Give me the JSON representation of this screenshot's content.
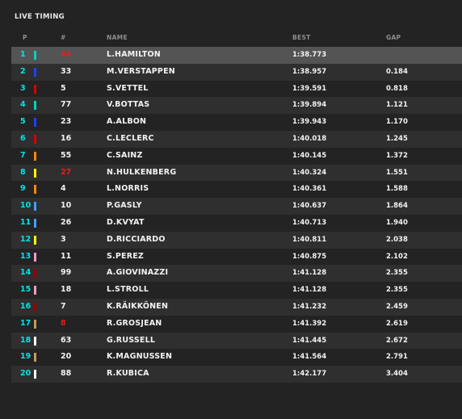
{
  "title": "LIVE TIMING",
  "headers": {
    "pos": "P",
    "num": "#",
    "name": "NAME",
    "best": "BEST",
    "gap": "GAP"
  },
  "rows": [
    {
      "pos": "1",
      "team_color": "#00d2be",
      "num": "44",
      "num_red": true,
      "name": "L.HAMILTON",
      "best": "1:38.773",
      "gap": ""
    },
    {
      "pos": "2",
      "team_color": "#1e41ff",
      "num": "33",
      "num_red": false,
      "name": "M.VERSTAPPEN",
      "best": "1:38.957",
      "gap": "0.184"
    },
    {
      "pos": "3",
      "team_color": "#dc0000",
      "num": "5",
      "num_red": false,
      "name": "S.VETTEL",
      "best": "1:39.591",
      "gap": "0.818"
    },
    {
      "pos": "4",
      "team_color": "#00d2be",
      "num": "77",
      "num_red": false,
      "name": "V.BOTTAS",
      "best": "1:39.894",
      "gap": "1.121"
    },
    {
      "pos": "5",
      "team_color": "#1e41ff",
      "num": "23",
      "num_red": false,
      "name": "A.ALBON",
      "best": "1:39.943",
      "gap": "1.170"
    },
    {
      "pos": "6",
      "team_color": "#dc0000",
      "num": "16",
      "num_red": false,
      "name": "C.LECLERC",
      "best": "1:40.018",
      "gap": "1.245"
    },
    {
      "pos": "7",
      "team_color": "#ff8700",
      "num": "55",
      "num_red": false,
      "name": "C.SAINZ",
      "best": "1:40.145",
      "gap": "1.372"
    },
    {
      "pos": "8",
      "team_color": "#fff500",
      "num": "27",
      "num_red": true,
      "name": "N.HULKENBERG",
      "best": "1:40.324",
      "gap": "1.551"
    },
    {
      "pos": "9",
      "team_color": "#ff8700",
      "num": "4",
      "num_red": false,
      "name": "L.NORRIS",
      "best": "1:40.361",
      "gap": "1.588"
    },
    {
      "pos": "10",
      "team_color": "#469bff",
      "num": "10",
      "num_red": false,
      "name": "P.GASLY",
      "best": "1:40.637",
      "gap": "1.864"
    },
    {
      "pos": "11",
      "team_color": "#469bff",
      "num": "26",
      "num_red": false,
      "name": "D.KVYAT",
      "best": "1:40.713",
      "gap": "1.940"
    },
    {
      "pos": "12",
      "team_color": "#fff500",
      "num": "3",
      "num_red": false,
      "name": "D.RICCIARDO",
      "best": "1:40.811",
      "gap": "2.038"
    },
    {
      "pos": "13",
      "team_color": "#f596c8",
      "num": "11",
      "num_red": false,
      "name": "S.PEREZ",
      "best": "1:40.875",
      "gap": "2.102"
    },
    {
      "pos": "14",
      "team_color": "#9b0000",
      "num": "99",
      "num_red": false,
      "name": "A.GIOVINAZZI",
      "best": "1:41.128",
      "gap": "2.355"
    },
    {
      "pos": "15",
      "team_color": "#f596c8",
      "num": "18",
      "num_red": false,
      "name": "L.STROLL",
      "best": "1:41.128",
      "gap": "2.355"
    },
    {
      "pos": "16",
      "team_color": "#9b0000",
      "num": "7",
      "num_red": false,
      "name": "K.RÄIKKÖNEN",
      "best": "1:41.232",
      "gap": "2.459"
    },
    {
      "pos": "17",
      "team_color": "#bd9e57",
      "num": "8",
      "num_red": true,
      "name": "R.GROSJEAN",
      "best": "1:41.392",
      "gap": "2.619"
    },
    {
      "pos": "18",
      "team_color": "#ffffff",
      "num": "63",
      "num_red": false,
      "name": "G.RUSSELL",
      "best": "1:41.445",
      "gap": "2.672"
    },
    {
      "pos": "19",
      "team_color": "#bd9e57",
      "num": "20",
      "num_red": false,
      "name": "K.MAGNUSSEN",
      "best": "1:41.564",
      "gap": "2.791"
    },
    {
      "pos": "20",
      "team_color": "#ffffff",
      "num": "88",
      "num_red": false,
      "name": "R.KUBICA",
      "best": "1:42.177",
      "gap": "3.404"
    }
  ],
  "selected_row": 1
}
